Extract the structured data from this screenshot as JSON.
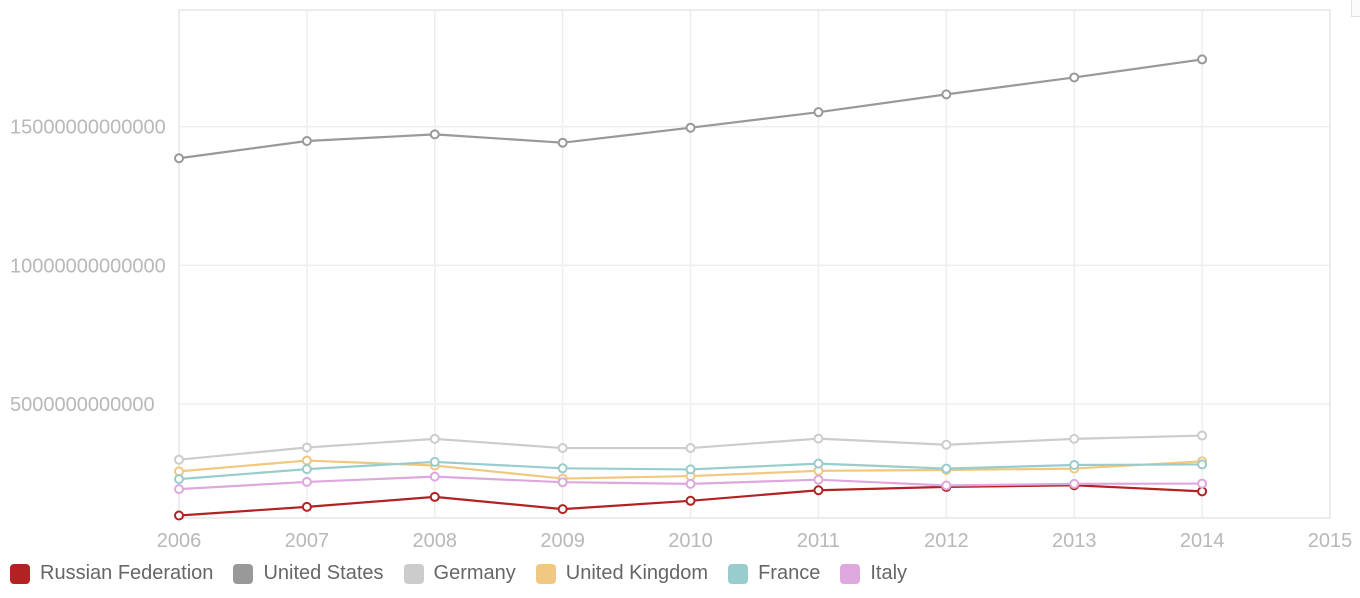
{
  "chart_data": {
    "type": "line",
    "title": "",
    "xlabel": "",
    "ylabel": "",
    "x": [
      2006,
      2007,
      2008,
      2009,
      2010,
      2011,
      2012,
      2013,
      2014
    ],
    "x_ticks": [
      "2006",
      "2007",
      "2008",
      "2009",
      "2010",
      "2011",
      "2012",
      "2013",
      "2014",
      "2015"
    ],
    "xlim": [
      2006,
      2015
    ],
    "y_ticks": [
      "5000000000000",
      "10000000000000",
      "15000000000000"
    ],
    "y_tick_values": [
      5000000000000,
      10000000000000,
      15000000000000
    ],
    "ylim": [
      900000000000,
      19200000000000
    ],
    "grid": true,
    "legend_position": "bottom-left",
    "series": [
      {
        "name": "Russian Federation",
        "color": "#b22222",
        "values": [
          990000000000,
          1300000000000,
          1660000000000,
          1220000000000,
          1520000000000,
          1900000000000,
          2020000000000,
          2080000000000,
          1860000000000
        ]
      },
      {
        "name": "United States",
        "color": "#999999",
        "values": [
          13860000000000,
          14480000000000,
          14720000000000,
          14420000000000,
          14960000000000,
          15520000000000,
          16160000000000,
          16770000000000,
          17420000000000
        ]
      },
      {
        "name": "Germany",
        "color": "#cccccc",
        "values": [
          3000000000000,
          3440000000000,
          3750000000000,
          3420000000000,
          3420000000000,
          3760000000000,
          3540000000000,
          3750000000000,
          3870000000000
        ]
      },
      {
        "name": "United Kingdom",
        "color": "#f0c880",
        "values": [
          2580000000000,
          2970000000000,
          2790000000000,
          2320000000000,
          2410000000000,
          2600000000000,
          2630000000000,
          2680000000000,
          2940000000000
        ]
      },
      {
        "name": "France",
        "color": "#99cccc",
        "values": [
          2300000000000,
          2660000000000,
          2920000000000,
          2690000000000,
          2650000000000,
          2860000000000,
          2680000000000,
          2810000000000,
          2830000000000
        ]
      },
      {
        "name": "Italy",
        "color": "#dda8dd",
        "values": [
          1940000000000,
          2200000000000,
          2390000000000,
          2190000000000,
          2130000000000,
          2280000000000,
          2070000000000,
          2130000000000,
          2140000000000
        ]
      }
    ]
  }
}
